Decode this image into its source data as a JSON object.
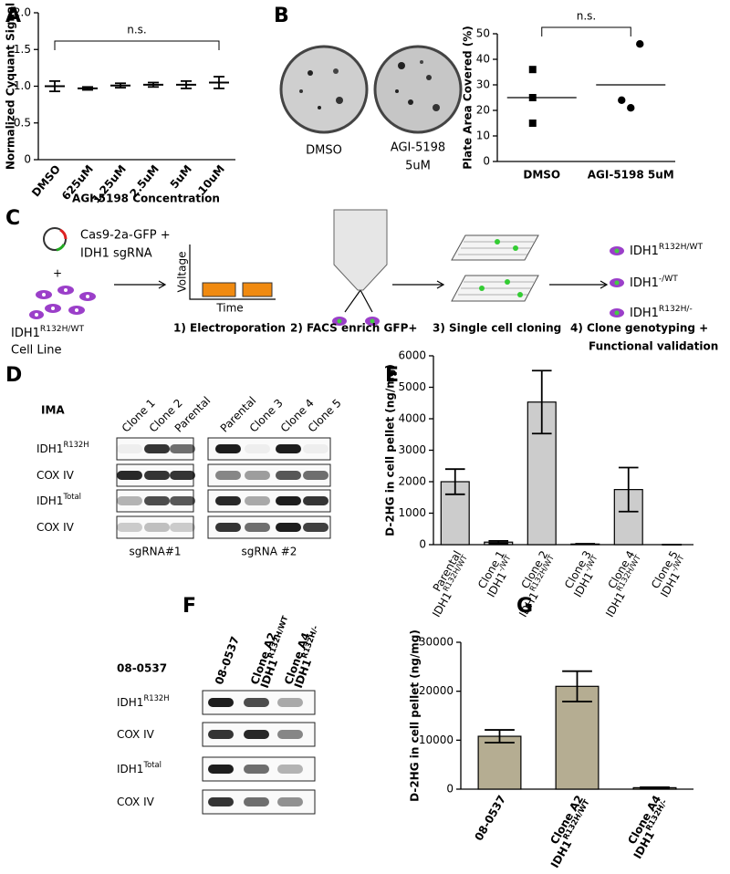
{
  "panel_labels": [
    "A",
    "B",
    "C",
    "D",
    "E",
    "F",
    "G"
  ],
  "chart_data": [
    {
      "type": "errorbar",
      "categories": [
        "DMSO",
        "625uM",
        "1.25uM",
        "2.5uM",
        "5uM",
        "10uM"
      ],
      "values": [
        1.0,
        0.97,
        1.01,
        1.02,
        1.02,
        1.05
      ],
      "errors": [
        0.07,
        0.02,
        0.03,
        0.03,
        0.05,
        0.08
      ],
      "ylabel": "Normalized Cyquant Signal",
      "xlabel": "AGI-5198 Concentration",
      "ylim": [
        0,
        2
      ],
      "yticks": [
        0,
        0.5,
        {
          "value": 1,
          "label": "1.0"
        },
        1.5,
        {
          "value": 2,
          "label": "2.0"
        }
      ],
      "annotation": "n.s.",
      "color": "#000000"
    },
    {
      "type": "dotplot",
      "categories": [
        "DMSO",
        "AGI-5198 5uM"
      ],
      "points": [
        [
          36,
          25,
          15
        ],
        [
          46,
          24,
          21
        ]
      ],
      "means": [
        25,
        30
      ],
      "markers": [
        "square",
        "circle"
      ],
      "ylabel": "Plate Area Covered (%)",
      "ylim": [
        0,
        50
      ],
      "yticks": [
        0,
        10,
        20,
        30,
        40,
        50
      ],
      "annotation": "n.s.",
      "color": "#000000"
    },
    {
      "type": "bar",
      "categories": [
        "Parental",
        "Clone 1",
        "Clone 2",
        "Clone 3",
        "Clone 4",
        "Clone 5"
      ],
      "genotypes": [
        {
          "base": "IDH1",
          "sup": "R132H/WT"
        },
        {
          "base": "IDH1",
          "sup": "-/WT"
        },
        {
          "base": "IDH1",
          "sup": "R132H/WT"
        },
        {
          "base": "IDH1",
          "sup": "-/WT"
        },
        {
          "base": "IDH1",
          "sup": "R132H/WT"
        },
        {
          "base": "IDH1",
          "sup": "-/WT"
        }
      ],
      "values": [
        2000,
        80,
        4530,
        20,
        1750,
        0
      ],
      "errors": [
        400,
        40,
        1000,
        10,
        700,
        0
      ],
      "ylabel": "D-2HG in cell pellet (ng/mg)",
      "ylim": [
        0,
        6000
      ],
      "yticks": [
        0,
        1000,
        2000,
        3000,
        4000,
        5000,
        6000
      ],
      "color": "#cccccc"
    },
    {
      "type": "bar",
      "categories": [
        "08-0537",
        "Clone A2",
        "Clone A4"
      ],
      "genotypes": [
        null,
        {
          "base": "IDH1",
          "sup": "R132H/WT"
        },
        {
          "base": "IDH1",
          "sup": "R132H/-"
        }
      ],
      "values": [
        10800,
        21000,
        300
      ],
      "errors": [
        1300,
        3100,
        100
      ],
      "ylabel": "D-2HG in cell pellet (ng/mg)",
      "ylim": [
        0,
        30000
      ],
      "yticks": [
        0,
        10000,
        20000,
        30000
      ],
      "color": "#b5ad92"
    }
  ],
  "plate_labels": [
    "DMSO",
    "AGI-5198",
    "5uM"
  ],
  "diagram": {
    "plasmid": [
      "Cas9-2a-GFP +",
      "IDH1 sgRNA"
    ],
    "plus": "+",
    "cell_line": {
      "base": "IDH1",
      "sup": "R132H/WT",
      "line2": "Cell Line"
    },
    "axis_y": "Voltage",
    "axis_x": "Time",
    "steps": [
      "1)  Electroporation",
      "2)  FACS enrich GFP+",
      "3)  Single cell cloning",
      "4)  Clone genotyping +"
    ],
    "step4_line2": "Functional validation",
    "outcomes": [
      {
        "base": "IDH1",
        "sup": "R132H/WT"
      },
      {
        "base": "IDH1",
        "sup": "-/WT"
      },
      {
        "base": "IDH1",
        "sup": "R132H/-"
      }
    ]
  },
  "blot_d": {
    "cell_line": "IMA",
    "lanes": [
      "Clone 1",
      "Clone 2",
      "Parental",
      "Parental",
      "Clone 3",
      "Clone 4",
      "Clone 5"
    ],
    "rows": [
      {
        "base": "IDH1",
        "sup": "R132H"
      },
      {
        "base": "COX IV"
      },
      {
        "base": "IDH1",
        "sup": "Total"
      },
      {
        "base": "COX IV"
      }
    ],
    "groups": [
      "sgRNA#1",
      "sgRNA #2"
    ]
  },
  "blot_f": {
    "cell_line": "08-0537",
    "lanes": [
      {
        "name": "08-0537"
      },
      {
        "name": "Clone A2",
        "base": "IDH1",
        "sup": "R132H/WT"
      },
      {
        "name": "Clone A4",
        "base": "IDH1",
        "sup": "R132H/-"
      }
    ],
    "rows": [
      {
        "base": "IDH1",
        "sup": "R132H"
      },
      {
        "base": "COX IV"
      },
      {
        "base": "IDH1",
        "sup": "Total"
      },
      {
        "base": "COX IV"
      }
    ]
  }
}
